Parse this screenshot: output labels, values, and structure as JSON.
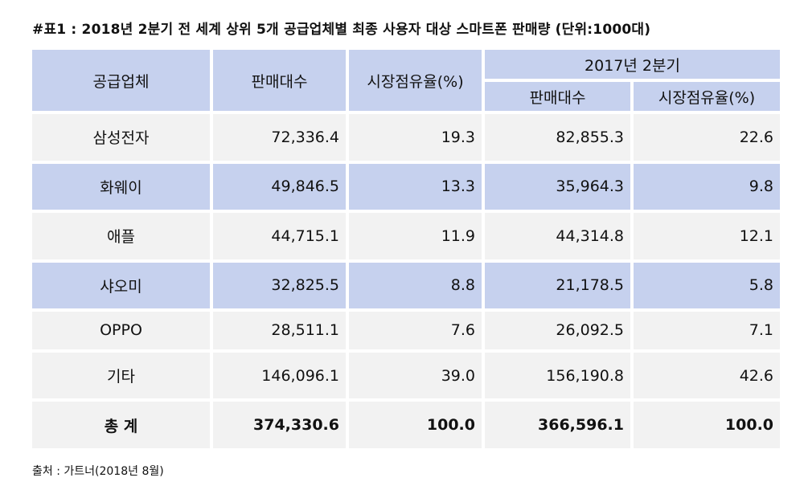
{
  "title": "#표1 : 2018년 2분기 전 세계 상위 5개 공급업체별 최종 사용자 대상 스마트폰 판매량 (단위:1000대)",
  "headers": {
    "vendor": "공급업체",
    "units": "판매대수",
    "share": "시장점유율(%)",
    "prev_group": "2017년 2분기",
    "prev_units": "판매대수",
    "prev_share": "시장점유율(%)"
  },
  "rows": [
    {
      "vendor": "삼성전자",
      "units": "72,336.4",
      "share": "19.3",
      "prev_units": "82,855.3",
      "prev_share": "22.6"
    },
    {
      "vendor": "화웨이",
      "units": "49,846.5",
      "share": "13.3",
      "prev_units": "35,964.3",
      "prev_share": "9.8"
    },
    {
      "vendor": "애플",
      "units": "44,715.1",
      "share": "11.9",
      "prev_units": "44,314.8",
      "prev_share": "12.1"
    },
    {
      "vendor": "샤오미",
      "units": "32,825.5",
      "share": "8.8",
      "prev_units": "21,178.5",
      "prev_share": "5.8"
    },
    {
      "vendor": "OPPO",
      "units": "28,511.1",
      "share": "7.6",
      "prev_units": "26,092.5",
      "prev_share": "7.1"
    },
    {
      "vendor": "기타",
      "units": "146,096.1",
      "share": "39.0",
      "prev_units": "156,190.8",
      "prev_share": "42.6"
    }
  ],
  "total": {
    "vendor": "총  계",
    "units": "374,330.6",
    "share": "100.0",
    "prev_units": "366,596.1",
    "prev_share": "100.0"
  },
  "source": "출처 : 가트너(2018년 8월)"
}
